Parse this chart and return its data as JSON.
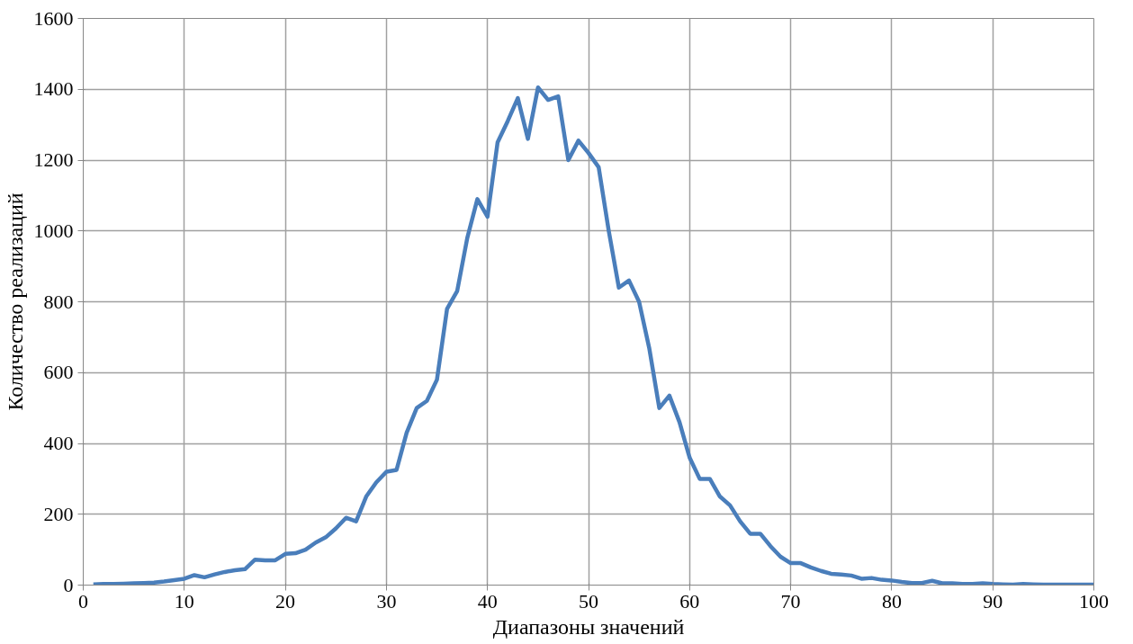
{
  "chart_data": {
    "type": "line",
    "xlabel": "Диапазоны значений",
    "ylabel": "Количество реализаций",
    "x": [
      1,
      2,
      3,
      4,
      5,
      6,
      7,
      8,
      9,
      10,
      11,
      12,
      13,
      14,
      15,
      16,
      17,
      18,
      19,
      20,
      21,
      22,
      23,
      24,
      25,
      26,
      27,
      28,
      29,
      30,
      31,
      32,
      33,
      34,
      35,
      36,
      37,
      38,
      39,
      40,
      41,
      42,
      43,
      44,
      45,
      46,
      47,
      48,
      49,
      50,
      51,
      52,
      53,
      54,
      55,
      56,
      57,
      58,
      59,
      60,
      61,
      62,
      63,
      64,
      65,
      66,
      67,
      68,
      69,
      70,
      71,
      72,
      73,
      74,
      75,
      76,
      77,
      78,
      79,
      80,
      81,
      82,
      83,
      84,
      85,
      86,
      87,
      88,
      89,
      90,
      91,
      92,
      93,
      94,
      95,
      96,
      97,
      98,
      99,
      100
    ],
    "series": [
      {
        "color": "#4a7ebb",
        "values": [
          2,
          3,
          3,
          4,
          5,
          6,
          7,
          10,
          14,
          18,
          28,
          22,
          30,
          37,
          42,
          45,
          72,
          70,
          70,
          88,
          90,
          100,
          120,
          135,
          160,
          190,
          180,
          250,
          290,
          320,
          325,
          430,
          500,
          520,
          580,
          780,
          830,
          980,
          1090,
          1040,
          1250,
          1310,
          1375,
          1260,
          1405,
          1370,
          1380,
          1200,
          1255,
          1220,
          1180,
          1000,
          840,
          860,
          800,
          670,
          500,
          535,
          460,
          360,
          300,
          300,
          250,
          225,
          180,
          145,
          145,
          110,
          80,
          62,
          62,
          50,
          40,
          32,
          30,
          27,
          18,
          20,
          15,
          13,
          9,
          6,
          6,
          12,
          5,
          5,
          3,
          3,
          5,
          3,
          2,
          1,
          3,
          2,
          1,
          1,
          1,
          1,
          1,
          1
        ]
      }
    ],
    "xlim": [
      0,
      100
    ],
    "xticks": [
      0,
      10,
      20,
      30,
      40,
      50,
      60,
      70,
      80,
      90,
      100
    ],
    "ylim": [
      0,
      1600
    ],
    "yticks": [
      0,
      200,
      400,
      600,
      800,
      1000,
      1200,
      1400,
      1600
    ],
    "grid": true,
    "marker": "none",
    "line_style": "solid"
  }
}
